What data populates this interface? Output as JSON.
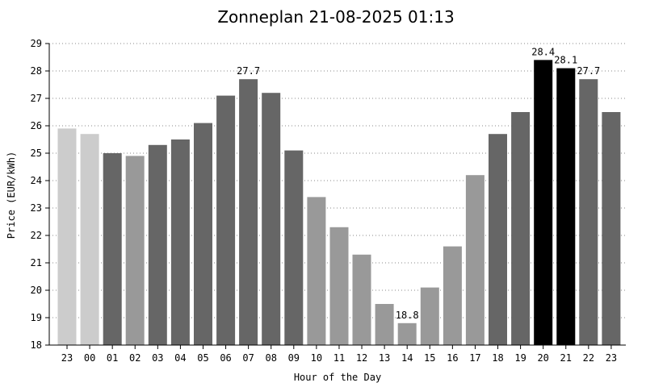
{
  "chart_data": {
    "type": "bar",
    "title": "Zonneplan 21-08-2025 01:13",
    "xlabel": "Hour of the Day",
    "ylabel": "Price (EUR/kWh)",
    "ylim": [
      18,
      29
    ],
    "yticks": [
      18,
      19,
      20,
      21,
      22,
      23,
      24,
      25,
      26,
      27,
      28,
      29
    ],
    "grid": true,
    "categories": [
      "23",
      "00",
      "01",
      "02",
      "03",
      "04",
      "05",
      "06",
      "07",
      "08",
      "09",
      "10",
      "11",
      "12",
      "13",
      "14",
      "15",
      "16",
      "17",
      "18",
      "19",
      "20",
      "21",
      "22",
      "23"
    ],
    "values": [
      25.9,
      25.7,
      25.0,
      24.9,
      25.3,
      25.5,
      26.1,
      27.1,
      27.7,
      27.2,
      25.1,
      23.4,
      22.3,
      21.3,
      19.5,
      18.8,
      20.1,
      21.6,
      24.2,
      25.7,
      26.5,
      28.4,
      28.1,
      27.7,
      26.5
    ],
    "bar_colors": [
      "#cccccc",
      "#cccccc",
      "#666666",
      "#999999",
      "#666666",
      "#666666",
      "#666666",
      "#666666",
      "#666666",
      "#666666",
      "#666666",
      "#999999",
      "#999999",
      "#999999",
      "#999999",
      "#999999",
      "#999999",
      "#999999",
      "#999999",
      "#666666",
      "#666666",
      "#000000",
      "#000000",
      "#666666",
      "#666666"
    ],
    "annotations": [
      {
        "index": 8,
        "text": "27.7"
      },
      {
        "index": 15,
        "text": "18.8"
      },
      {
        "index": 21,
        "text": "28.4"
      },
      {
        "index": 22,
        "text": "28.1"
      },
      {
        "index": 23,
        "text": "27.7"
      }
    ]
  }
}
